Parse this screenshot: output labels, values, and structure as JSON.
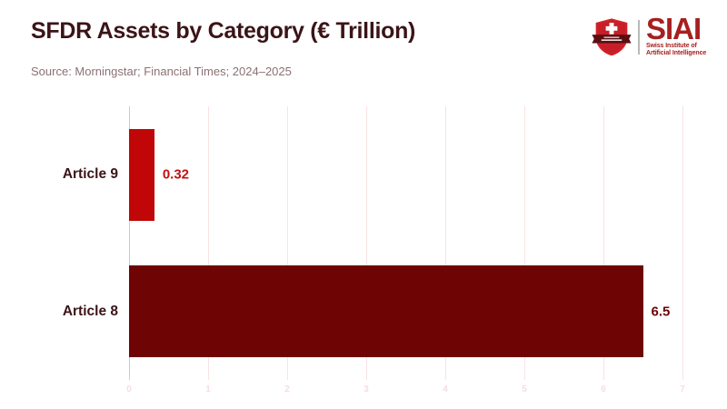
{
  "header": {
    "title": "SFDR Assets by Category (€ Trillion)",
    "source": "Source: Morningstar; Financial Times; 2024–2025"
  },
  "logo": {
    "name": "SIAI",
    "tagline_line1": "Swiss Institute of",
    "tagline_line2": "Artificial Intelligence",
    "shield_icon": "swiss-shield-cross-icon",
    "brand_color": "#A6201F",
    "shield_red": "#D2202A",
    "banner_dark": "#5A0E12"
  },
  "chart_data": {
    "type": "bar",
    "orientation": "horizontal",
    "title": "SFDR Assets by Category (€ Trillion)",
    "categories": [
      "Article 9",
      "Article 8"
    ],
    "values": [
      0.32,
      6.5
    ],
    "value_labels": [
      "0.32",
      "6.5"
    ],
    "bar_colors": [
      "#C00606",
      "#6F0404"
    ],
    "value_label_colors": [
      "#C31010",
      "#6F0404"
    ],
    "category_label_color": "#3B1417",
    "xlabel": "",
    "ylabel": "",
    "xlim": [
      0,
      7
    ],
    "x_ticks": [
      "0",
      "1",
      "2",
      "3",
      "4",
      "5",
      "6",
      "7"
    ],
    "grid": true,
    "gridline_color": "#F9E2E2",
    "zero_line_color": "#CBCBCB",
    "tick_label_color": "#F6DEDE",
    "legend": "none",
    "background": "#FFFFFF"
  }
}
